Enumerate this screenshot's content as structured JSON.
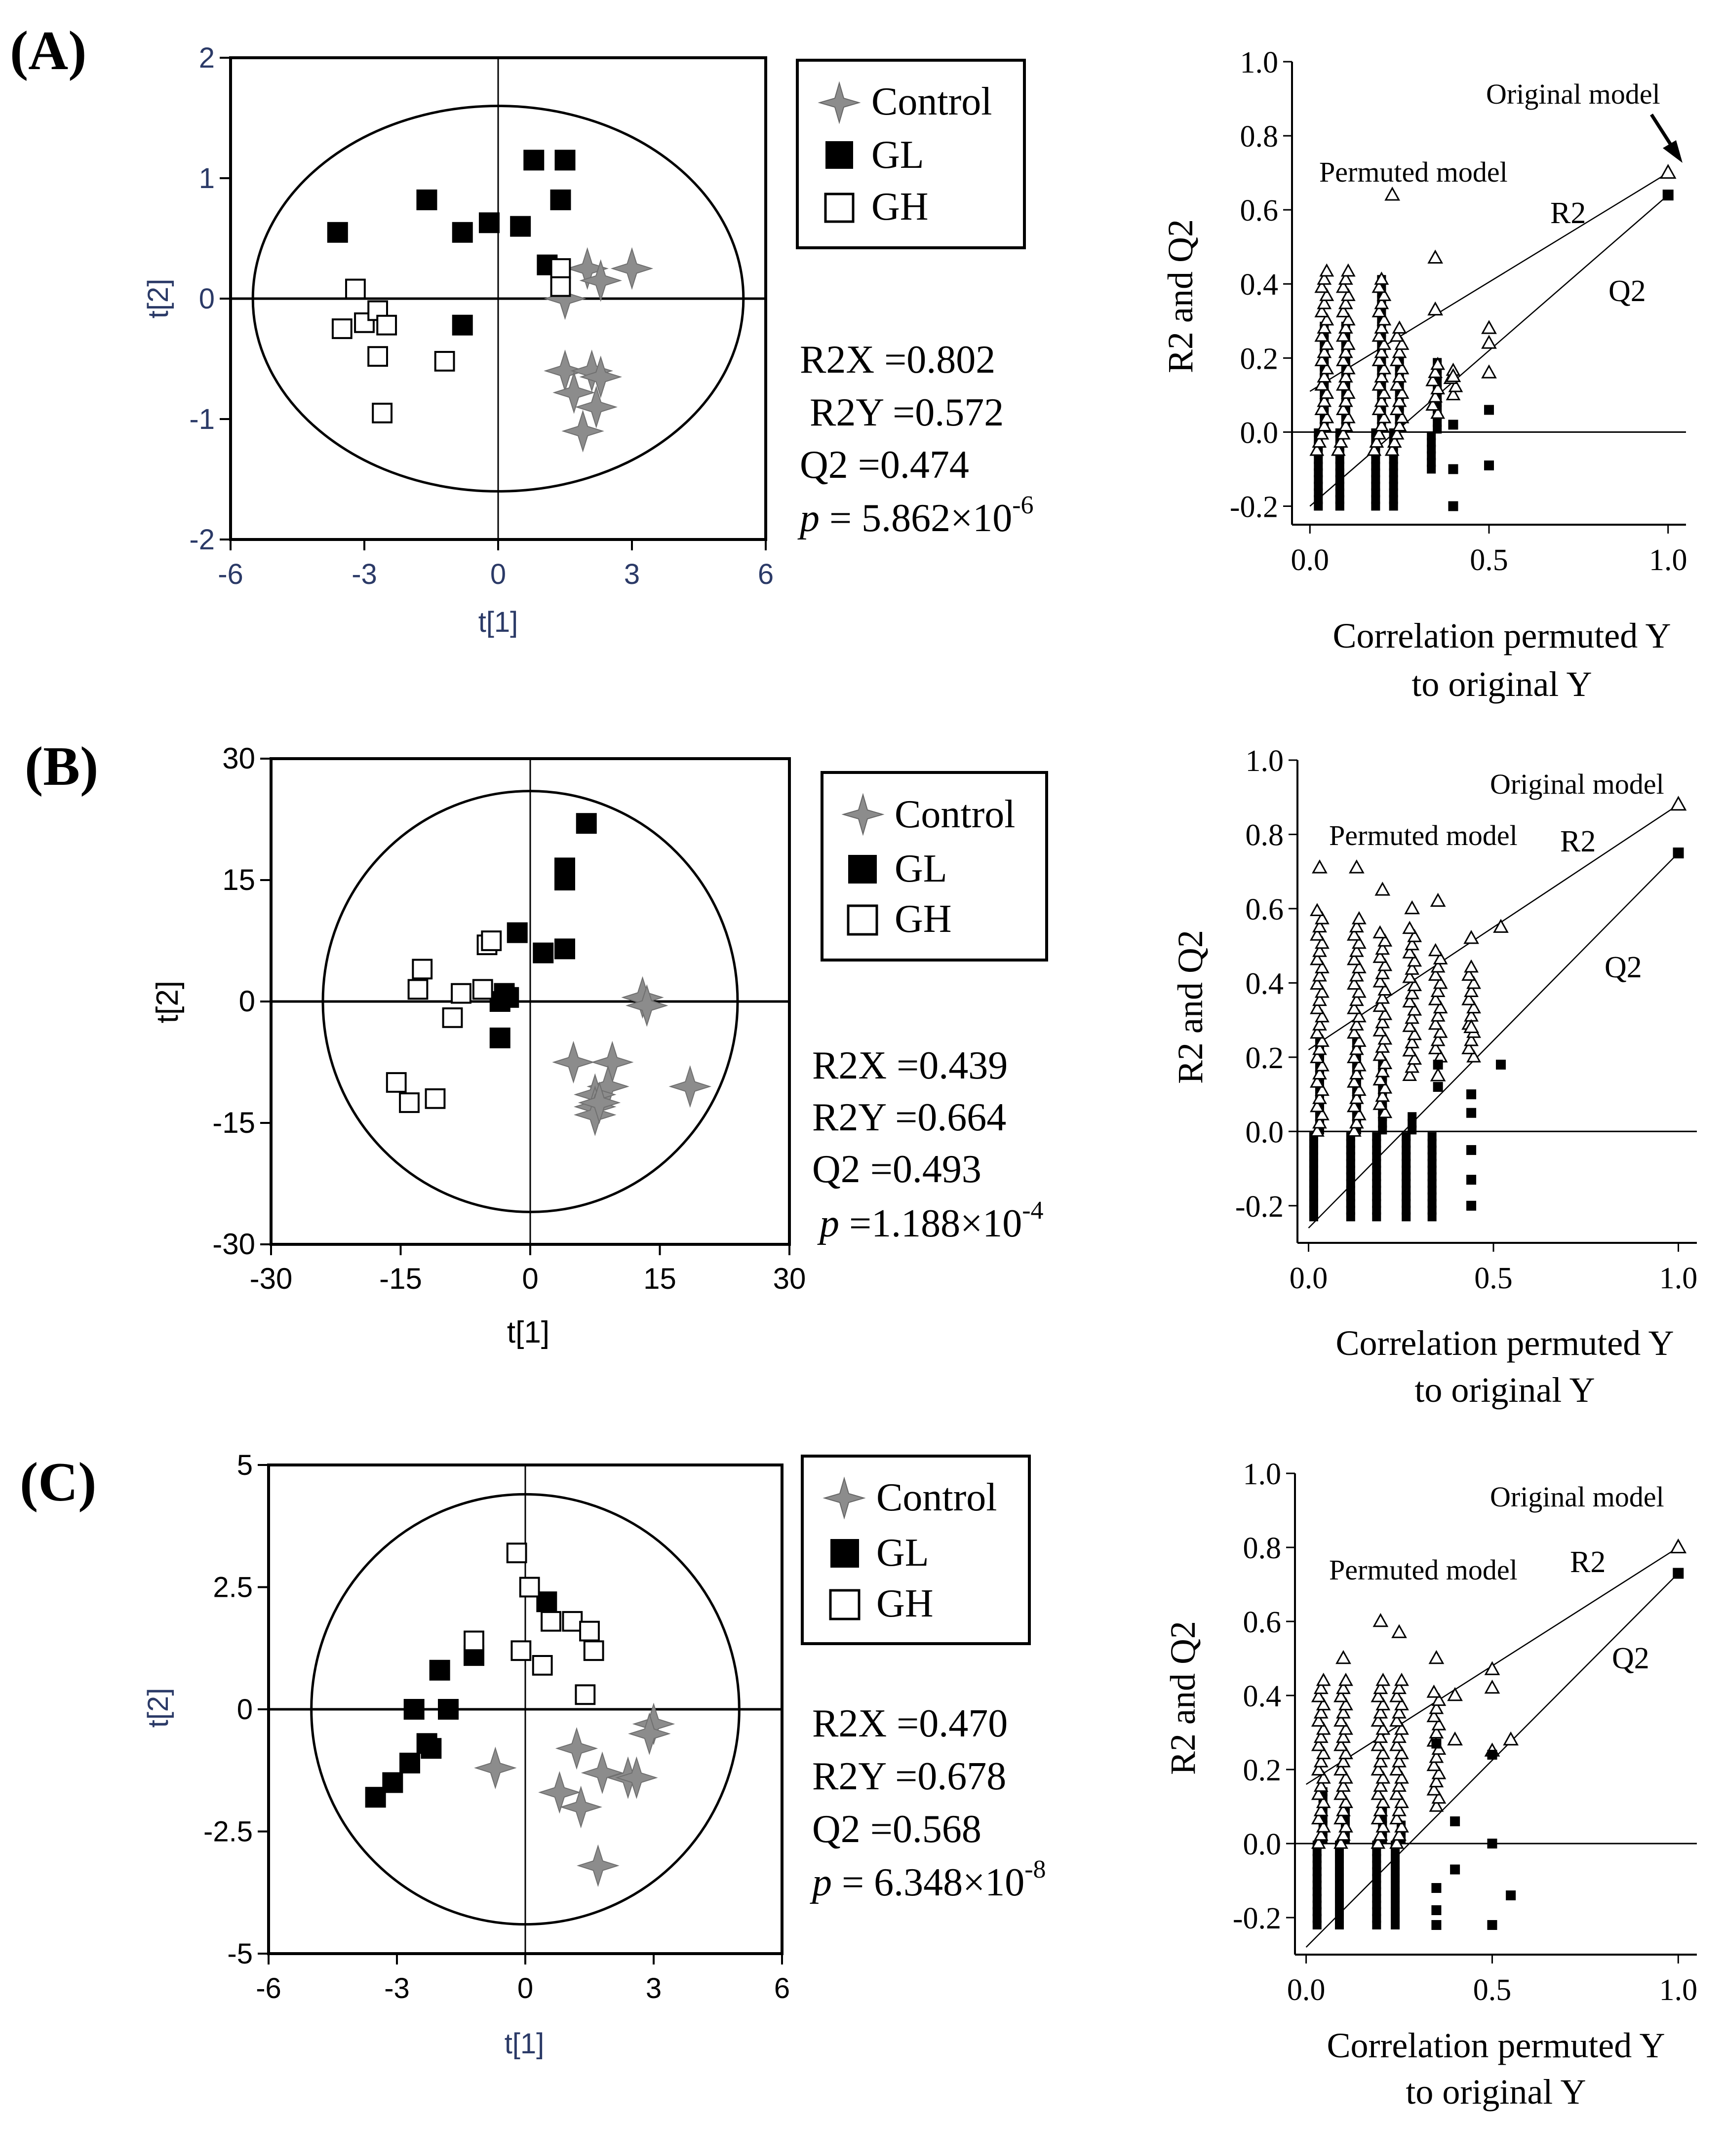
{
  "figure": {
    "panels": [
      {
        "label": "(A)",
        "stats": {
          "r2x": "R2X =0.802",
          "r2y": " R2Y =0.572",
          "q2": "Q2 =0.474",
          "p_prefix": "p",
          "p_value": " = 5.862×10",
          "p_exp": "-6"
        }
      },
      {
        "label": "(B)",
        "stats": {
          "r2x": "R2X =0.439",
          "r2y": "R2Y =0.664",
          "q2": "Q2 =0.493",
          "p_prefix": "p",
          "p_value": " =1.188×10",
          "p_exp": "-4"
        }
      },
      {
        "label": "(C)",
        "stats": {
          "r2x": "R2X =0.470",
          "r2y": "R2Y =0.678",
          "q2": "Q2 =0.568",
          "p_prefix": "p",
          "p_value": " = 6.348×10",
          "p_exp": "-8"
        }
      }
    ],
    "legend": {
      "control": "Control",
      "gl": "GL",
      "gh": "GH"
    },
    "perm_labels": {
      "original": "Original model",
      "permuted": "Permuted model",
      "r2": "R2",
      "q2": "Q2",
      "ylabel": "R2 and Q2",
      "xlabel_line1": "Correlation permuted Y",
      "xlabel_line2": "to original Y"
    },
    "colors": {
      "control": "#8c8c8c",
      "gl": "#000000",
      "gh": "#ffffff"
    }
  },
  "chart_data": [
    {
      "type": "scatter",
      "panel": "A-score",
      "xlabel": "t[1]",
      "ylabel": "t[2]",
      "xlim": [
        -6,
        6
      ],
      "ylim": [
        -2,
        2
      ],
      "xticks": [
        -6,
        -3,
        0,
        3,
        6
      ],
      "yticks": [
        -2,
        -1,
        0,
        1,
        2
      ],
      "ellipse": {
        "rx": 5.5,
        "ry": 1.6
      },
      "series": [
        {
          "name": "Control",
          "points": [
            [
              2.0,
              0.25
            ],
            [
              2.3,
              0.15
            ],
            [
              3.0,
              0.25
            ],
            [
              1.5,
              0.0
            ],
            [
              1.5,
              -0.6
            ],
            [
              2.1,
              -0.6
            ],
            [
              2.3,
              -0.65
            ],
            [
              1.7,
              -0.78
            ],
            [
              2.2,
              -0.9
            ],
            [
              1.9,
              -1.1
            ]
          ]
        },
        {
          "name": "GL",
          "points": [
            [
              -3.6,
              0.55
            ],
            [
              -1.6,
              0.82
            ],
            [
              -0.8,
              0.55
            ],
            [
              -0.2,
              0.63
            ],
            [
              0.5,
              0.6
            ],
            [
              0.8,
              1.15
            ],
            [
              1.5,
              1.15
            ],
            [
              1.4,
              0.82
            ],
            [
              1.1,
              0.28
            ],
            [
              -0.8,
              -0.22
            ]
          ]
        },
        {
          "name": "GH",
          "points": [
            [
              -3.2,
              0.08
            ],
            [
              -3.5,
              -0.25
            ],
            [
              -3.0,
              -0.2
            ],
            [
              -2.7,
              -0.1
            ],
            [
              -2.5,
              -0.22
            ],
            [
              -2.7,
              -0.48
            ],
            [
              -1.2,
              -0.52
            ],
            [
              -2.6,
              -0.95
            ],
            [
              1.4,
              0.25
            ],
            [
              1.4,
              0.1
            ]
          ]
        }
      ]
    },
    {
      "type": "scatter",
      "panel": "A-permutation",
      "xlabel": "Correlation permuted Y to original Y",
      "ylabel": "R2 and Q2",
      "xlim": [
        -0.05,
        1.05
      ],
      "ylim": [
        -0.25,
        1.0
      ],
      "xticks": [
        0.0,
        0.5,
        1.0
      ],
      "yticks": [
        -0.2,
        0.0,
        0.2,
        0.4,
        0.6,
        0.8,
        1.0
      ],
      "original": {
        "r2": 0.7,
        "q2": 0.64
      },
      "r2_line": {
        "intercept": 0.11,
        "slope": 0.59
      },
      "q2_line": {
        "intercept": -0.2,
        "slope": 0.84
      },
      "columns_r2": [
        [
          0.04,
          -0.05,
          0.45
        ],
        [
          0.1,
          -0.05,
          0.45
        ],
        [
          0.2,
          -0.05,
          0.43
        ],
        [
          0.25,
          -0.05,
          0.28
        ],
        [
          0.35,
          0.05,
          0.2
        ],
        [
          0.4,
          0.1,
          0.18
        ]
      ],
      "columns_q2": [
        [
          0.04,
          -0.2,
          0.3
        ],
        [
          0.1,
          -0.2,
          0.3
        ],
        [
          0.2,
          -0.2,
          0.42
        ],
        [
          0.25,
          -0.2,
          0.2
        ],
        [
          0.35,
          -0.1,
          0.2
        ]
      ],
      "extra_r2": [
        [
          0.23,
          0.64
        ],
        [
          0.35,
          0.47
        ],
        [
          0.35,
          0.33
        ],
        [
          0.4,
          0.15
        ],
        [
          0.5,
          0.28
        ],
        [
          0.5,
          0.24
        ],
        [
          0.5,
          0.16
        ]
      ],
      "extra_q2": [
        [
          0.4,
          0.02
        ],
        [
          0.4,
          -0.1
        ],
        [
          0.4,
          -0.2
        ],
        [
          0.5,
          0.06
        ],
        [
          0.5,
          -0.09
        ]
      ]
    },
    {
      "type": "scatter",
      "panel": "B-score",
      "xlabel": "t[1]",
      "ylabel": "t[2]",
      "xlim": [
        -30,
        30
      ],
      "ylim": [
        -30,
        30
      ],
      "xticks": [
        -30,
        -15,
        0,
        15,
        30
      ],
      "yticks": [
        -30,
        -15,
        0,
        15,
        30
      ],
      "ellipse": {
        "rx": 24,
        "ry": 26
      },
      "series": [
        {
          "name": "Control",
          "points": [
            [
              13,
              0.5
            ],
            [
              13.5,
              -0.5
            ],
            [
              18.5,
              -10.5
            ],
            [
              5,
              -7.5
            ],
            [
              9.5,
              -7.5
            ],
            [
              9,
              -10.5
            ],
            [
              7.5,
              -11.5
            ],
            [
              7.5,
              -13
            ],
            [
              7.5,
              -14
            ],
            [
              8,
              -12.5
            ]
          ]
        },
        {
          "name": "GL",
          "points": [
            [
              6.5,
              22
            ],
            [
              4,
              16.5
            ],
            [
              4,
              15
            ],
            [
              4,
              6.5
            ],
            [
              1.5,
              6
            ],
            [
              -1.5,
              8.5
            ],
            [
              -3,
              1
            ],
            [
              -3.5,
              0
            ],
            [
              -3.5,
              -4.5
            ],
            [
              -2.5,
              0.5
            ]
          ]
        },
        {
          "name": "GH",
          "points": [
            [
              -12.5,
              4
            ],
            [
              -13,
              1.5
            ],
            [
              -8,
              1
            ],
            [
              -5.5,
              1.5
            ],
            [
              -5,
              7
            ],
            [
              -4.5,
              7.5
            ],
            [
              -9,
              -2
            ],
            [
              -15.5,
              -10
            ],
            [
              -14,
              -12.5
            ],
            [
              -11,
              -12
            ]
          ]
        }
      ]
    },
    {
      "type": "scatter",
      "panel": "B-permutation",
      "xlabel": "Correlation permuted Y to original Y",
      "ylabel": "R2 and Q2",
      "xlim": [
        -0.03,
        1.05
      ],
      "ylim": [
        -0.3,
        1.0
      ],
      "xticks": [
        0.0,
        0.5,
        1.0
      ],
      "yticks": [
        -0.2,
        0.0,
        0.2,
        0.4,
        0.6,
        0.8,
        1.0
      ],
      "original": {
        "r2": 0.88,
        "q2": 0.75
      },
      "r2_line": {
        "intercept": 0.22,
        "slope": 0.66
      },
      "q2_line": {
        "intercept": -0.26,
        "slope": 1.01
      },
      "columns_r2": [
        [
          0.03,
          0.0,
          0.6
        ],
        [
          0.13,
          0.0,
          0.58
        ],
        [
          0.2,
          0.05,
          0.55
        ],
        [
          0.28,
          0.15,
          0.55
        ],
        [
          0.35,
          0.2,
          0.5
        ],
        [
          0.44,
          0.2,
          0.45
        ]
      ],
      "columns_q2": [
        [
          0.03,
          -0.23,
          0.25
        ],
        [
          0.13,
          -0.23,
          0.25
        ],
        [
          0.2,
          -0.23,
          0.2
        ],
        [
          0.28,
          -0.23,
          0.05
        ],
        [
          0.35,
          -0.23,
          0.0
        ]
      ],
      "extra_r2": [
        [
          0.03,
          0.71
        ],
        [
          0.13,
          0.71
        ],
        [
          0.2,
          0.65
        ],
        [
          0.28,
          0.6
        ],
        [
          0.35,
          0.62
        ],
        [
          0.44,
          0.52
        ],
        [
          0.52,
          0.55
        ],
        [
          0.44,
          0.28
        ],
        [
          0.35,
          0.15
        ]
      ],
      "extra_q2": [
        [
          0.44,
          0.1
        ],
        [
          0.44,
          0.05
        ],
        [
          0.44,
          -0.05
        ],
        [
          0.44,
          -0.13
        ],
        [
          0.44,
          -0.2
        ],
        [
          0.35,
          0.18
        ],
        [
          0.35,
          0.12
        ],
        [
          0.52,
          0.18
        ]
      ]
    },
    {
      "type": "scatter",
      "panel": "C-score",
      "xlabel": "t[1]",
      "ylabel": "t[2]",
      "xlim": [
        -6,
        6
      ],
      "ylim": [
        -5,
        5
      ],
      "xticks": [
        -6,
        -3,
        0,
        3,
        6
      ],
      "yticks": [
        -5,
        -2.5,
        0,
        2.5,
        5
      ],
      "ellipse": {
        "rx": 5.0,
        "ry": 4.4
      },
      "series": [
        {
          "name": "Control",
          "points": [
            [
              3.0,
              -0.3
            ],
            [
              2.9,
              -0.5
            ],
            [
              1.2,
              -0.8
            ],
            [
              -0.7,
              -1.2
            ],
            [
              1.8,
              -1.3
            ],
            [
              2.4,
              -1.4
            ],
            [
              2.6,
              -1.4
            ],
            [
              0.8,
              -1.7
            ],
            [
              1.3,
              -2.0
            ],
            [
              1.7,
              -3.2
            ]
          ]
        },
        {
          "name": "GL",
          "points": [
            [
              0.5,
              2.2
            ],
            [
              -2.0,
              0.8
            ],
            [
              -1.2,
              1.1
            ],
            [
              -2.6,
              0.0
            ],
            [
              -1.8,
              0.0
            ],
            [
              -2.3,
              -0.7
            ],
            [
              -2.2,
              -0.8
            ],
            [
              -2.7,
              -1.1
            ],
            [
              -3.1,
              -1.5
            ],
            [
              -3.5,
              -1.8
            ]
          ]
        },
        {
          "name": "GH",
          "points": [
            [
              -0.2,
              3.2
            ],
            [
              0.1,
              2.5
            ],
            [
              0.6,
              1.8
            ],
            [
              1.1,
              1.8
            ],
            [
              1.5,
              1.6
            ],
            [
              1.6,
              1.2
            ],
            [
              -1.2,
              1.4
            ],
            [
              -0.1,
              1.2
            ],
            [
              0.4,
              0.9
            ],
            [
              1.4,
              0.3
            ]
          ]
        }
      ]
    },
    {
      "type": "scatter",
      "panel": "C-permutation",
      "xlabel": "Correlation permuted Y to original Y",
      "ylabel": "R2 and Q2",
      "xlim": [
        -0.03,
        1.05
      ],
      "ylim": [
        -0.3,
        1.0
      ],
      "xticks": [
        0.0,
        0.5,
        1.0
      ],
      "yticks": [
        -0.2,
        0.0,
        0.2,
        0.4,
        0.6,
        0.8,
        1.0
      ],
      "original": {
        "r2": 0.8,
        "q2": 0.73
      },
      "r2_line": {
        "intercept": 0.16,
        "slope": 0.64
      },
      "q2_line": {
        "intercept": -0.28,
        "slope": 1.01
      },
      "columns_r2": [
        [
          0.04,
          0.0,
          0.46
        ],
        [
          0.1,
          0.0,
          0.46
        ],
        [
          0.2,
          0.0,
          0.46
        ],
        [
          0.25,
          0.0,
          0.45
        ],
        [
          0.35,
          0.1,
          0.42
        ]
      ],
      "columns_q2": [
        [
          0.04,
          -0.22,
          0.15
        ],
        [
          0.1,
          -0.22,
          0.1
        ],
        [
          0.2,
          -0.22,
          0.1
        ],
        [
          0.25,
          -0.22,
          0.05
        ]
      ],
      "extra_r2": [
        [
          0.1,
          0.5
        ],
        [
          0.2,
          0.6
        ],
        [
          0.25,
          0.57
        ],
        [
          0.35,
          0.5
        ],
        [
          0.4,
          0.4
        ],
        [
          0.5,
          0.47
        ],
        [
          0.5,
          0.42
        ],
        [
          0.55,
          0.28
        ],
        [
          0.4,
          0.28
        ],
        [
          0.5,
          0.25
        ]
      ],
      "extra_q2": [
        [
          0.35,
          0.27
        ],
        [
          0.4,
          0.06
        ],
        [
          0.4,
          -0.07
        ],
        [
          0.35,
          -0.12
        ],
        [
          0.35,
          -0.18
        ],
        [
          0.35,
          -0.22
        ],
        [
          0.5,
          0.0
        ],
        [
          0.5,
          -0.22
        ],
        [
          0.55,
          -0.14
        ],
        [
          0.5,
          0.24
        ]
      ]
    }
  ]
}
